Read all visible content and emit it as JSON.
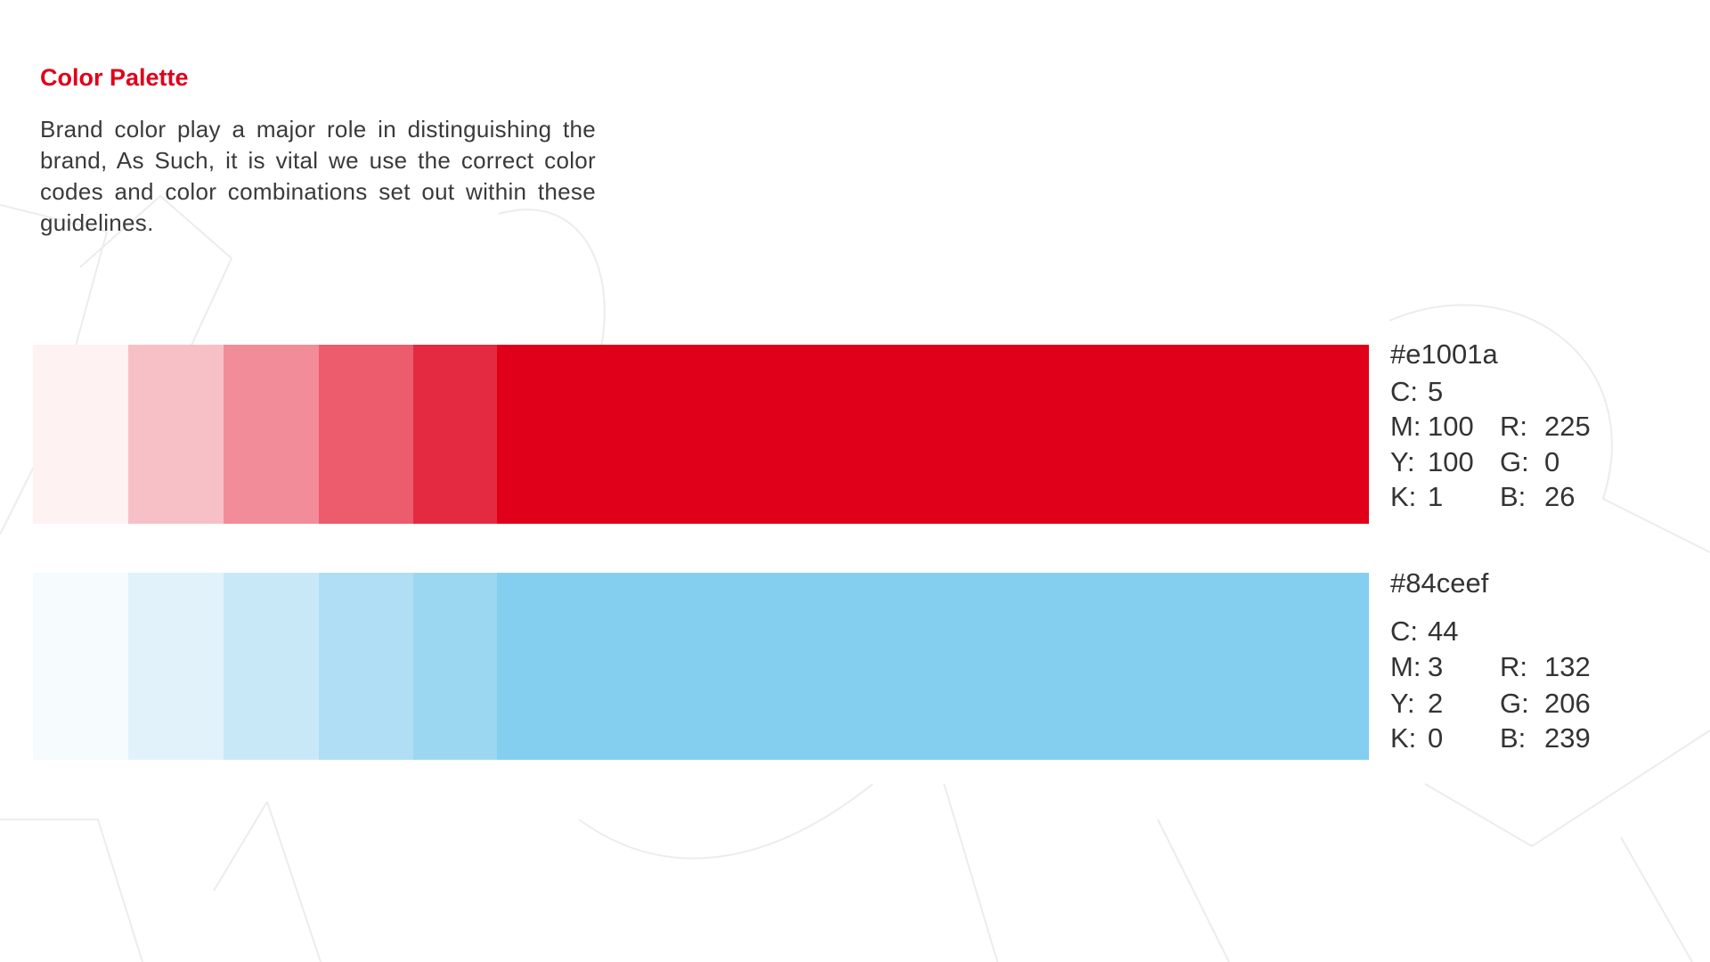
{
  "header": {
    "title": "Color Palette",
    "description": "Brand color play a major role in distinguishing the brand, As Such, it is vital we use the correct color codes and color combinations set out within these guidelines."
  },
  "palettes": [
    {
      "hex": "#e1001a",
      "cmyk": [
        {
          "label": "C:",
          "value": 5
        },
        {
          "label": "M:",
          "value": 100
        },
        {
          "label": "Y:",
          "value": 100
        },
        {
          "label": "K:",
          "value": 1
        }
      ],
      "rgb": [
        {
          "label": "R:",
          "value": 225
        },
        {
          "label": "G:",
          "value": 0
        },
        {
          "label": "B:",
          "value": 26
        }
      ]
    },
    {
      "hex": "#84ceef",
      "cmyk": [
        {
          "label": "C:",
          "value": 44
        },
        {
          "label": "M:",
          "value": 3
        },
        {
          "label": "Y:",
          "value": 2
        },
        {
          "label": "K:",
          "value": 0
        }
      ],
      "rgb": [
        {
          "label": "R:",
          "value": 132
        },
        {
          "label": "G:",
          "value": 206
        },
        {
          "label": "B:",
          "value": 239
        }
      ]
    }
  ]
}
